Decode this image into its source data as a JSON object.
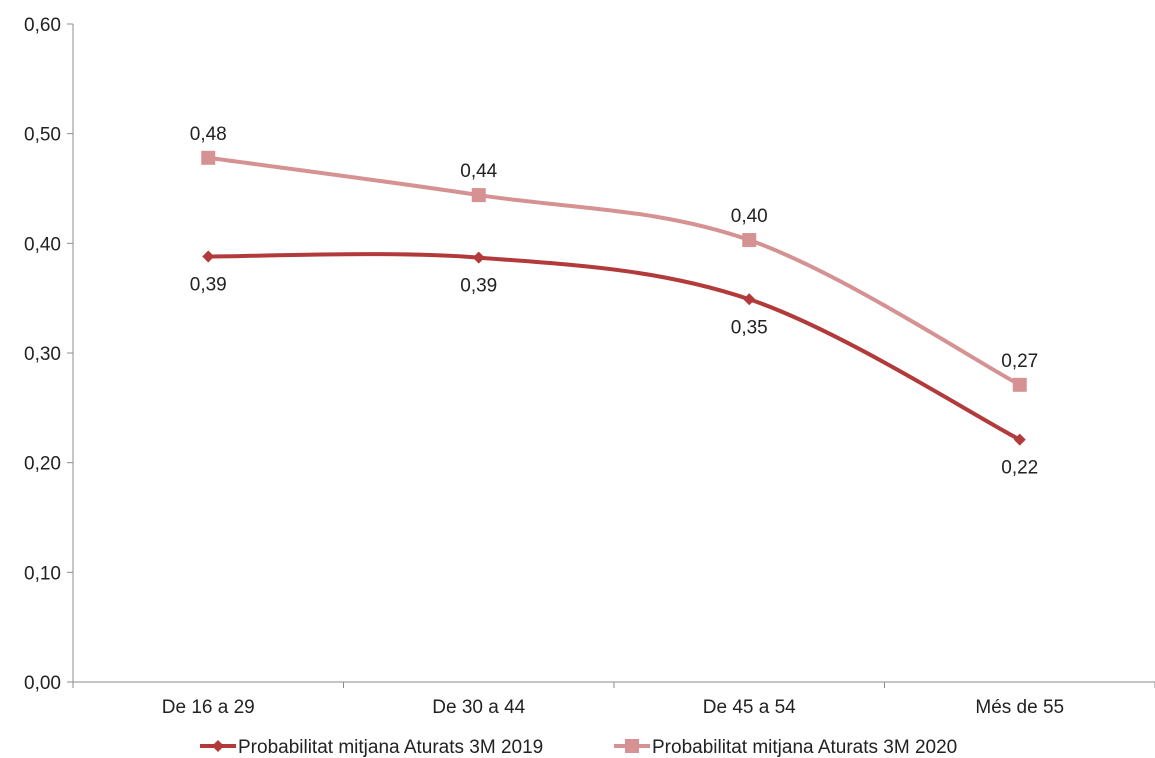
{
  "chart_data": {
    "type": "line",
    "title": "",
    "xlabel": "",
    "ylabel": "",
    "categories": [
      "De 16 a 29",
      "De 30 a 44",
      "De 45 a 54",
      "Més de 55"
    ],
    "ylim": [
      0,
      0.6
    ],
    "yticks": [
      "0,00",
      "0,10",
      "0,20",
      "0,30",
      "0,40",
      "0,50",
      "0,60"
    ],
    "grid": false,
    "legend_position": "bottom",
    "series": [
      {
        "name": "Probabilitat mitjana Aturats 3M 2019",
        "values": [
          0.388,
          0.387,
          0.349,
          0.221
        ],
        "labels": [
          "0,39",
          "0,39",
          "0,35",
          "0,22"
        ],
        "color": "#B23A3A",
        "marker": "diamond",
        "label_position": "below"
      },
      {
        "name": "Probabilitat mitjana Aturats 3M 2020",
        "values": [
          0.478,
          0.444,
          0.403,
          0.271
        ],
        "labels": [
          "0,48",
          "0,44",
          "0,40",
          "0,27"
        ],
        "color": "#D69292",
        "marker": "square",
        "label_position": "above"
      }
    ]
  }
}
